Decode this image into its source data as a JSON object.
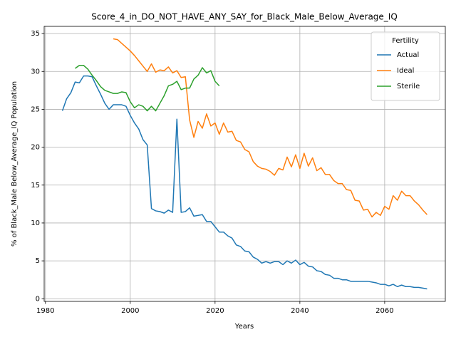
{
  "chart_data": {
    "type": "line",
    "title": "Score_4_in_DO_NOT_HAVE_ANY_SAY_for_Black_Male_Below_Average_IQ",
    "xlabel": "Years",
    "ylabel": "% of Black_Male Below_Average_IQ Population",
    "legend_title": "Fertility",
    "legend": "upper right",
    "grid": true,
    "x": [
      1984,
      1985,
      1986,
      1987,
      1988,
      1989,
      1990,
      1991,
      1992,
      1993,
      1994,
      1995,
      1996,
      1997,
      1998,
      1999,
      2000,
      2001,
      2002,
      2003,
      2004,
      2005,
      2006,
      2007,
      2008,
      2009,
      2010,
      2011,
      2012,
      2013,
      2014,
      2015,
      2016,
      2017,
      2018,
      2019,
      2020,
      2021,
      2022,
      2023,
      2024,
      2025,
      2026,
      2027,
      2028,
      2029,
      2030,
      2031,
      2032,
      2033,
      2034,
      2035,
      2036,
      2037,
      2038,
      2039,
      2040,
      2041,
      2042,
      2043,
      2044,
      2045,
      2046,
      2047,
      2048,
      2049,
      2050,
      2051,
      2052,
      2053,
      2054,
      2055,
      2056,
      2057,
      2058,
      2059,
      2060,
      2061,
      2062,
      2063,
      2064,
      2065,
      2066,
      2067,
      2068,
      2069,
      2070
    ],
    "series": [
      {
        "name": "Actual",
        "color": "#1f77b4",
        "values": [
          24.8,
          26.4,
          27.2,
          28.6,
          28.5,
          29.4,
          29.4,
          29.3,
          28.1,
          27.0,
          25.8,
          25.0,
          25.6,
          25.6,
          25.6,
          25.4,
          24.2,
          23.2,
          22.4,
          21.0,
          20.3,
          11.9,
          11.6,
          11.5,
          11.3,
          11.7,
          11.4,
          23.7,
          11.4,
          11.5,
          12.0,
          10.9,
          11.0,
          11.1,
          10.2,
          10.2,
          9.5,
          8.8,
          8.8,
          8.3,
          8.0,
          7.1,
          6.9,
          6.3,
          6.2,
          5.5,
          5.2,
          4.7,
          4.9,
          4.7,
          4.9,
          4.9,
          4.5,
          5.0,
          4.7,
          5.1,
          4.5,
          4.8,
          4.3,
          4.2,
          3.7,
          3.6,
          3.2,
          3.1,
          2.7,
          2.7,
          2.5,
          2.5,
          2.3,
          2.3,
          2.3,
          2.3,
          2.3,
          2.2,
          2.1,
          1.9,
          1.9,
          1.7,
          1.9,
          1.6,
          1.8,
          1.6,
          1.6,
          1.5,
          1.5,
          1.4,
          1.3
        ]
      },
      {
        "name": "Ideal",
        "color": "#ff7f0e",
        "values": [
          null,
          null,
          null,
          null,
          null,
          null,
          null,
          null,
          null,
          null,
          null,
          null,
          34.3,
          34.2,
          33.7,
          33.2,
          32.7,
          32.1,
          31.4,
          30.7,
          30.0,
          31.0,
          29.9,
          30.2,
          30.1,
          30.6,
          29.8,
          30.1,
          29.2,
          29.3,
          23.6,
          21.3,
          23.4,
          22.5,
          24.4,
          22.8,
          23.2,
          21.7,
          23.2,
          22.0,
          22.1,
          20.9,
          20.7,
          19.7,
          19.4,
          18.1,
          17.5,
          17.2,
          17.1,
          16.8,
          16.3,
          17.2,
          17.0,
          18.7,
          17.4,
          19.0,
          17.2,
          19.2,
          17.5,
          18.6,
          16.9,
          17.3,
          16.4,
          16.4,
          15.6,
          15.2,
          15.2,
          14.4,
          14.3,
          13.0,
          12.9,
          11.7,
          11.8,
          10.8,
          11.4,
          11.0,
          12.2,
          11.8,
          13.6,
          13.0,
          14.2,
          13.6,
          13.6,
          12.9,
          12.4,
          11.7,
          11.1
        ]
      },
      {
        "name": "Sterile",
        "color": "#2ca02c",
        "values": [
          null,
          null,
          null,
          30.4,
          30.8,
          30.8,
          30.3,
          29.5,
          28.8,
          28.0,
          27.5,
          27.3,
          27.1,
          27.1,
          27.3,
          27.2,
          26.0,
          25.2,
          25.6,
          25.4,
          24.8,
          25.4,
          24.8,
          25.8,
          26.8,
          28.1,
          28.3,
          28.7,
          27.6,
          27.8,
          27.8,
          29.0,
          29.5,
          30.5,
          29.8,
          30.1,
          28.7,
          28.1,
          null,
          null,
          null,
          null,
          null,
          null,
          null,
          null,
          null,
          null,
          null,
          null,
          null,
          null,
          null,
          null,
          null,
          null,
          null,
          null,
          null,
          null,
          null,
          null,
          null,
          null,
          null,
          null,
          null,
          null,
          null,
          null,
          null,
          null,
          null,
          null,
          null,
          null,
          null,
          null,
          null,
          null,
          null,
          null,
          null,
          null,
          null,
          null,
          null
        ]
      }
    ],
    "xlim": [
      1979.7,
      2074.3
    ],
    "xticks": [
      1980,
      2000,
      2020,
      2040,
      2060
    ],
    "ylim": [
      -0.35,
      35.95
    ],
    "yticks": [
      0,
      5,
      10,
      15,
      20,
      25,
      30,
      35
    ]
  }
}
